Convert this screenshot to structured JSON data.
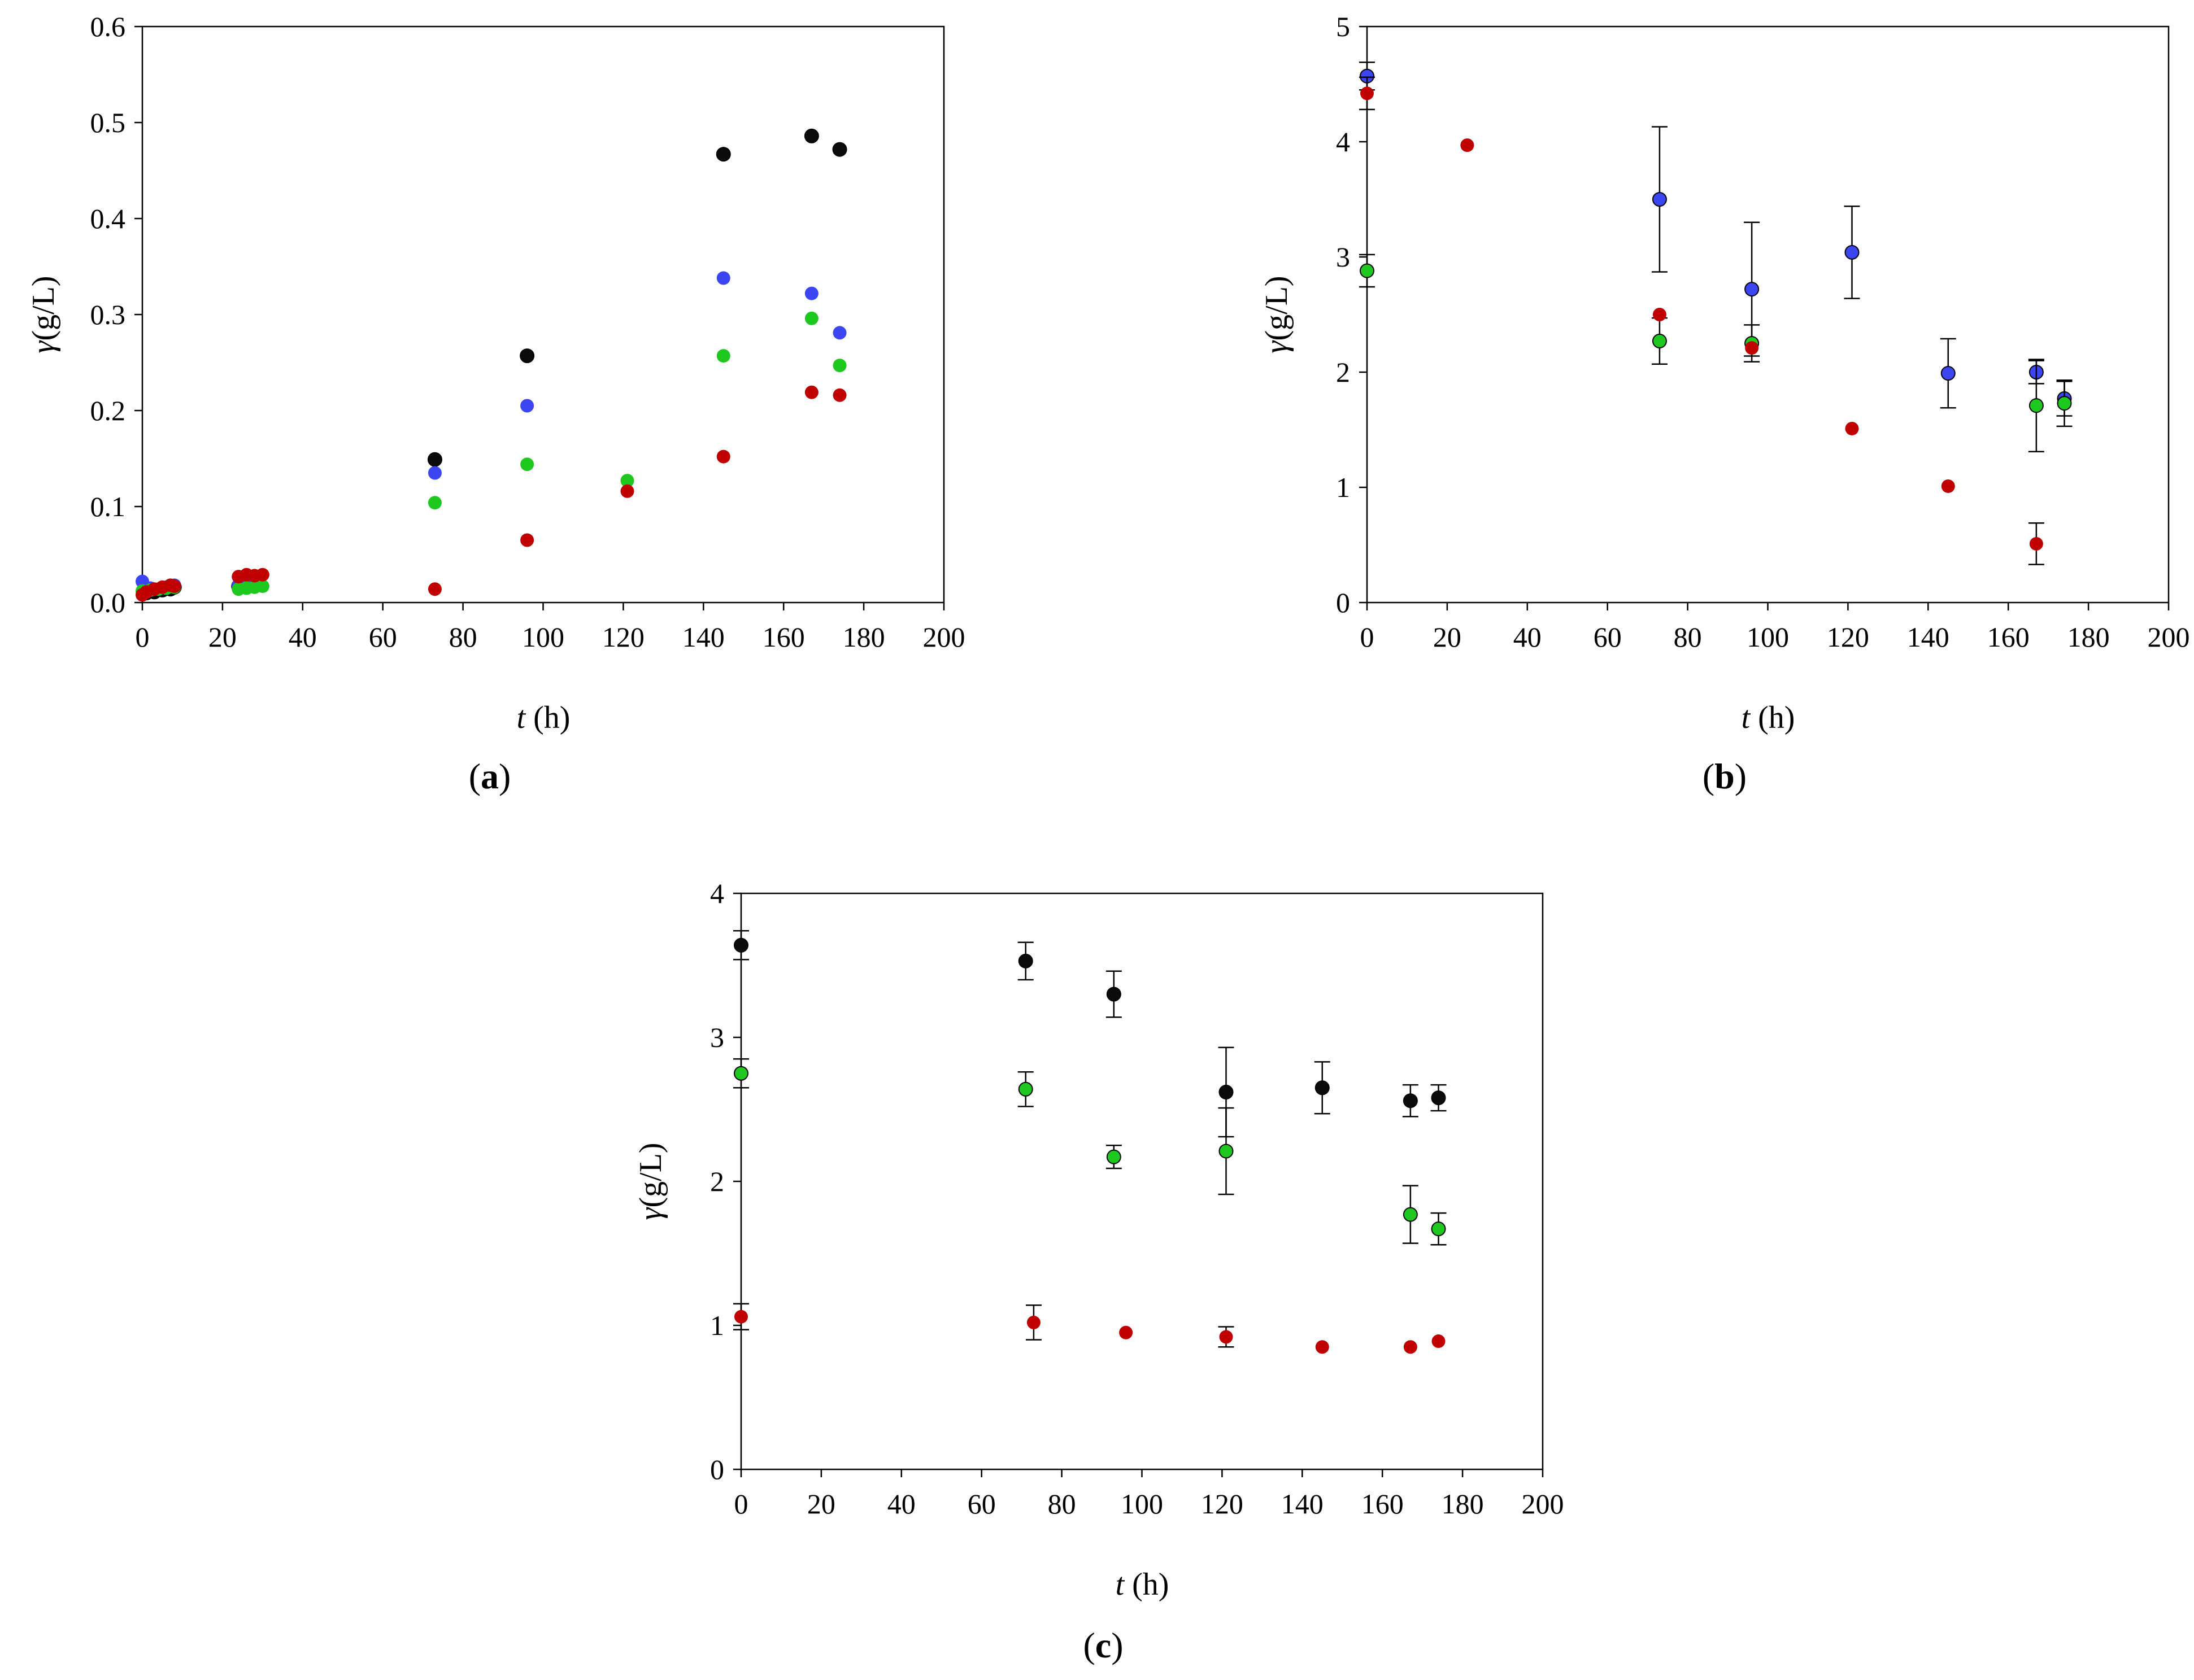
{
  "figure": {
    "panels": [
      "a",
      "b",
      "c"
    ]
  },
  "colors": {
    "black": "#0b0b0b",
    "blue": "#3b46f2",
    "green": "#1ec81e",
    "red": "#c00000",
    "frame": "#000000"
  },
  "chart_data": [
    {
      "id": "a",
      "type": "scatter",
      "panel_label": "(a)",
      "panel_letter": "a",
      "xlabel_var": "t",
      "xlabel_unit": "(h)",
      "ylabel_var": "γ",
      "ylabel_unit": "(g/L)",
      "xlim": [
        0,
        200
      ],
      "ylim": [
        0,
        0.6
      ],
      "xticks": [
        0,
        20,
        40,
        60,
        80,
        100,
        120,
        140,
        160,
        180,
        200
      ],
      "yticks": [
        0,
        0.1,
        0.2,
        0.3,
        0.4,
        0.5,
        0.6
      ],
      "ytick_labels": [
        "0.0",
        "0.1",
        "0.2",
        "0.3",
        "0.4",
        "0.5",
        "0.6"
      ],
      "series": [
        {
          "name": "black",
          "color": "black",
          "stroke": "black",
          "points": [
            [
              1,
              0.01
            ],
            [
              3,
              0.011
            ],
            [
              5,
              0.013
            ],
            [
              7,
              0.014
            ],
            [
              8,
              0.016
            ],
            [
              24,
              0.017
            ],
            [
              26,
              0.018
            ],
            [
              28,
              0.019
            ],
            [
              29,
              0.02
            ],
            [
              73,
              0.149
            ],
            [
              96,
              0.257
            ],
            [
              145,
              0.467
            ],
            [
              167,
              0.486
            ],
            [
              174,
              0.472
            ]
          ]
        },
        {
          "name": "blue",
          "color": "blue",
          "stroke": "none",
          "points": [
            [
              0,
              0.022
            ],
            [
              2,
              0.015
            ],
            [
              4,
              0.014
            ],
            [
              6,
              0.016
            ],
            [
              8,
              0.018
            ],
            [
              24,
              0.018
            ],
            [
              26,
              0.019
            ],
            [
              28,
              0.021
            ],
            [
              73,
              0.135
            ],
            [
              96,
              0.205
            ],
            [
              145,
              0.338
            ],
            [
              167,
              0.322
            ],
            [
              174,
              0.281
            ]
          ]
        },
        {
          "name": "green",
          "color": "green",
          "stroke": "none",
          "points": [
            [
              0,
              0.012
            ],
            [
              2,
              0.013
            ],
            [
              4,
              0.014
            ],
            [
              6,
              0.015
            ],
            [
              8,
              0.016
            ],
            [
              24,
              0.014
            ],
            [
              26,
              0.015
            ],
            [
              28,
              0.016
            ],
            [
              30,
              0.017
            ],
            [
              73,
              0.104
            ],
            [
              96,
              0.144
            ],
            [
              121,
              0.127
            ],
            [
              145,
              0.257
            ],
            [
              167,
              0.296
            ],
            [
              174,
              0.247
            ]
          ]
        },
        {
          "name": "red",
          "color": "red",
          "stroke": "none",
          "points": [
            [
              0,
              0.008
            ],
            [
              1,
              0.011
            ],
            [
              3,
              0.014
            ],
            [
              5,
              0.016
            ],
            [
              7,
              0.018
            ],
            [
              8,
              0.017
            ],
            [
              24,
              0.027
            ],
            [
              26,
              0.029
            ],
            [
              28,
              0.028
            ],
            [
              30,
              0.029
            ],
            [
              73,
              0.014
            ],
            [
              96,
              0.065
            ],
            [
              121,
              0.116
            ],
            [
              145,
              0.152
            ],
            [
              167,
              0.219
            ],
            [
              174,
              0.216
            ]
          ]
        }
      ]
    },
    {
      "id": "b",
      "type": "scatter",
      "panel_label": "(b)",
      "panel_letter": "b",
      "xlabel_var": "t",
      "xlabel_unit": "(h)",
      "ylabel_var": "γ",
      "ylabel_unit": "(g/L)",
      "xlim": [
        0,
        200
      ],
      "ylim": [
        0,
        5
      ],
      "xticks": [
        0,
        20,
        40,
        60,
        80,
        100,
        120,
        140,
        160,
        180,
        200
      ],
      "yticks": [
        0,
        1,
        2,
        3,
        4,
        5
      ],
      "ytick_labels": [
        "0",
        "1",
        "2",
        "3",
        "4",
        "5"
      ],
      "series": [
        {
          "name": "blue",
          "color": "blue",
          "stroke": "black",
          "points": [
            [
              0,
              4.57,
              0.12
            ],
            [
              73,
              3.5,
              0.63
            ],
            [
              96,
              2.72,
              0.58
            ],
            [
              121,
              3.04,
              0.4
            ],
            [
              145,
              1.99,
              0.3
            ],
            [
              167,
              2.0,
              0.1
            ],
            [
              174,
              1.77,
              0.15
            ]
          ]
        },
        {
          "name": "green",
          "color": "green",
          "stroke": "black",
          "points": [
            [
              0,
              2.88,
              0.14
            ],
            [
              73,
              2.27,
              0.2
            ],
            [
              96,
              2.25,
              0.16
            ],
            [
              167,
              1.71,
              0.4
            ],
            [
              174,
              1.73,
              0.2
            ]
          ]
        },
        {
          "name": "red",
          "color": "red",
          "stroke": "none",
          "points": [
            [
              0,
              4.42,
              0.14
            ],
            [
              25,
              3.97,
              0
            ],
            [
              73,
              2.5,
              0
            ],
            [
              96,
              2.21,
              0
            ],
            [
              121,
              1.51,
              0
            ],
            [
              145,
              1.01,
              0
            ],
            [
              167,
              0.51,
              0.18
            ]
          ]
        }
      ]
    },
    {
      "id": "c",
      "type": "scatter",
      "panel_label": "(c)",
      "panel_letter": "c",
      "xlabel_var": "t",
      "xlabel_unit": "(h)",
      "ylabel_var": "γ",
      "ylabel_unit": "(g/L)",
      "xlim": [
        0,
        200
      ],
      "ylim": [
        0,
        4
      ],
      "xticks": [
        0,
        20,
        40,
        60,
        80,
        100,
        120,
        140,
        160,
        180,
        200
      ],
      "yticks": [
        0,
        1,
        2,
        3,
        4
      ],
      "ytick_labels": [
        "0",
        "1",
        "2",
        "3",
        "4"
      ],
      "series": [
        {
          "name": "black",
          "color": "black",
          "stroke": "black",
          "points": [
            [
              0,
              3.64,
              0.1
            ],
            [
              71,
              3.53,
              0.13
            ],
            [
              93,
              3.3,
              0.16
            ],
            [
              121,
              2.62,
              0.31
            ],
            [
              145,
              2.65,
              0.18
            ],
            [
              167,
              2.56,
              0.11
            ],
            [
              174,
              2.58,
              0.09
            ]
          ]
        },
        {
          "name": "green",
          "color": "green",
          "stroke": "black",
          "points": [
            [
              0,
              2.75,
              0.1
            ],
            [
              71,
              2.64,
              0.12
            ],
            [
              93,
              2.17,
              0.08
            ],
            [
              121,
              2.21,
              0.3
            ],
            [
              167,
              1.77,
              0.2
            ],
            [
              174,
              1.67,
              0.11
            ]
          ]
        },
        {
          "name": "red",
          "color": "red",
          "stroke": "none",
          "points": [
            [
              0,
              1.06,
              0.09
            ],
            [
              73,
              1.02,
              0.12
            ],
            [
              96,
              0.95,
              0
            ],
            [
              121,
              0.92,
              0.07
            ],
            [
              145,
              0.85,
              0
            ],
            [
              167,
              0.85,
              0
            ],
            [
              174,
              0.89,
              0
            ]
          ]
        }
      ]
    }
  ]
}
